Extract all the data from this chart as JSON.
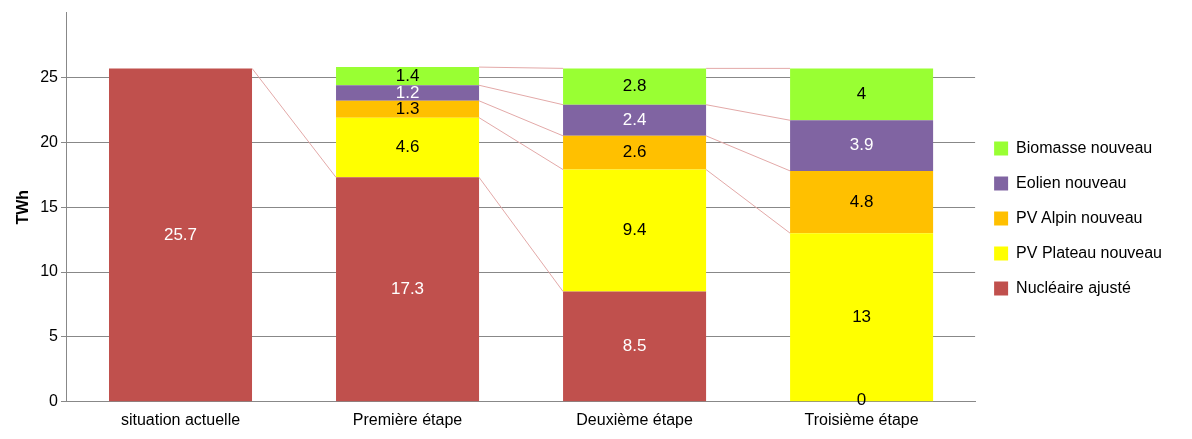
{
  "chart_data": {
    "type": "bar",
    "stacked": true,
    "ylabel": "TWh",
    "categories": [
      "situation actuelle",
      "Première étape",
      "Deuxième étape",
      "Troisième étape"
    ],
    "series": [
      {
        "name": "Nucléaire ajusté",
        "color": "#c0504d",
        "values": [
          25.7,
          17.3,
          8.5,
          null
        ]
      },
      {
        "name": "PV Plateau nouveau",
        "color": "#ffff00",
        "values": [
          null,
          4.6,
          9.4,
          13
        ]
      },
      {
        "name": "PV Alpin nouveau",
        "color": "#ffc000",
        "values": [
          null,
          1.3,
          2.6,
          4.8
        ]
      },
      {
        "name": "Eolien nouveau",
        "color": "#8064a2",
        "values": [
          null,
          1.2,
          2.4,
          3.9
        ]
      },
      {
        "name": "Biomasse nouveau",
        "color": "#99ff33",
        "values": [
          null,
          1.4,
          2.8,
          4
        ]
      }
    ],
    "ylim": [
      0,
      30
    ],
    "yticks": [
      0,
      5,
      10,
      15,
      20,
      25
    ],
    "grid": "y",
    "legend": "right",
    "data_labels": true,
    "annotations": [
      {
        "text": "0",
        "x": "Troisième étape",
        "y": 0
      }
    ]
  }
}
